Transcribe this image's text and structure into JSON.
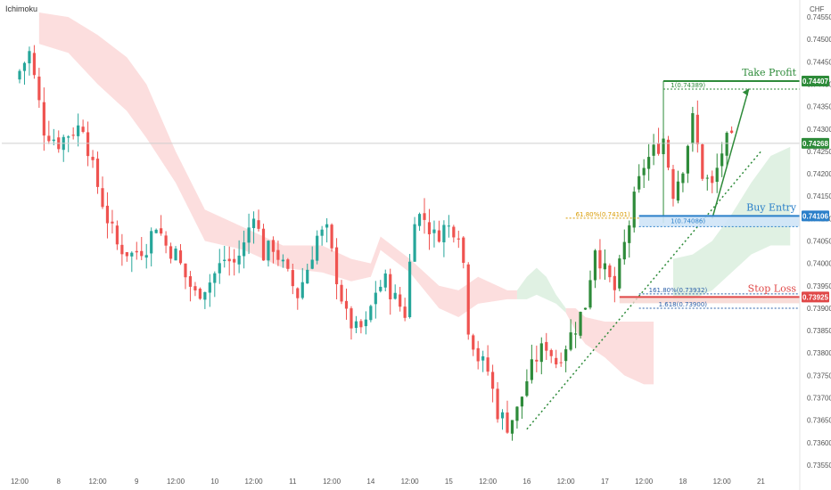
{
  "header": {
    "indicator_label": "Ichimoku",
    "currency_label": "CHF"
  },
  "chart_data": {
    "type": "candlestick",
    "ylim": [
      0.7353,
      0.7458
    ],
    "y_ticks": [
      "0.74550",
      "0.74500",
      "0.74450",
      "0.74400",
      "0.74350",
      "0.74300",
      "0.74250",
      "0.74200",
      "0.74150",
      "0.74100",
      "0.74050",
      "0.74000",
      "0.73950",
      "0.73900",
      "0.73850",
      "0.73800",
      "0.73750",
      "0.73700",
      "0.73650",
      "0.73600",
      "0.73550"
    ],
    "x_labels": [
      "12:00",
      "8",
      "12:00",
      "9",
      "12:00",
      "10",
      "12:00",
      "11",
      "12:00",
      "14",
      "12:00",
      "15",
      "12:00",
      "16",
      "12:00",
      "17",
      "12:00",
      "18",
      "12:00",
      "21"
    ],
    "x_label_positions": [
      0.0,
      8.0,
      16.0,
      24.0,
      32.0,
      40.0,
      48.0,
      56.0,
      64.0,
      72.0,
      80.0,
      88.0,
      96.0,
      104.0,
      112.0,
      120.0,
      128.0,
      136.0,
      144.0,
      152.0
    ],
    "candle_anchors": [
      [
        0,
        0.7443
      ],
      [
        2,
        0.7447
      ],
      [
        5,
        0.743
      ],
      [
        8,
        0.7427
      ],
      [
        10,
        0.7429
      ],
      [
        13,
        0.7431
      ],
      [
        15,
        0.7421
      ],
      [
        18,
        0.741
      ],
      [
        20,
        0.7404
      ],
      [
        23,
        0.7402
      ],
      [
        26,
        0.7404
      ],
      [
        28,
        0.7409
      ],
      [
        30,
        0.7404
      ],
      [
        32,
        0.7402
      ],
      [
        34,
        0.7397
      ],
      [
        36,
        0.7393
      ],
      [
        39,
        0.7396
      ],
      [
        42,
        0.7401
      ],
      [
        44,
        0.74
      ],
      [
        46,
        0.7404
      ],
      [
        48,
        0.7412
      ],
      [
        50,
        0.7402
      ],
      [
        52,
        0.7404
      ],
      [
        55,
        0.7397
      ],
      [
        57,
        0.7393
      ],
      [
        59,
        0.7399
      ],
      [
        61,
        0.7406
      ],
      [
        63,
        0.7407
      ],
      [
        65,
        0.7397
      ],
      [
        67,
        0.7388
      ],
      [
        69,
        0.7385
      ],
      [
        71,
        0.7386
      ],
      [
        73,
        0.7394
      ],
      [
        75,
        0.7396
      ],
      [
        77,
        0.7392
      ],
      [
        79,
        0.7389
      ],
      [
        81,
        0.7411
      ],
      [
        83,
        0.741
      ],
      [
        85,
        0.7406
      ],
      [
        87,
        0.7408
      ],
      [
        89,
        0.7408
      ],
      [
        90.5,
        0.7407
      ],
      [
        92,
        0.7386
      ],
      [
        94,
        0.7379
      ],
      [
        96,
        0.7376
      ],
      [
        98,
        0.7367
      ],
      [
        100,
        0.7364
      ],
      [
        102,
        0.7367
      ],
      [
        104,
        0.7374
      ],
      [
        106,
        0.7379
      ],
      [
        108,
        0.7382
      ],
      [
        110,
        0.7378
      ],
      [
        112,
        0.7382
      ],
      [
        114,
        0.7386
      ],
      [
        116,
        0.7391
      ],
      [
        118,
        0.7404
      ],
      [
        120,
        0.7398
      ],
      [
        122,
        0.7394
      ],
      [
        124,
        0.7404
      ],
      [
        126,
        0.7414
      ],
      [
        128,
        0.7422
      ],
      [
        130,
        0.7425
      ],
      [
        132,
        0.7428
      ],
      [
        134,
        0.7416
      ],
      [
        136,
        0.7422
      ],
      [
        138,
        0.7432
      ],
      [
        140,
        0.742
      ],
      [
        142,
        0.7417
      ],
      [
        144,
        0.7425
      ],
      [
        145,
        0.7427
      ]
    ],
    "cloud_segments": [
      {
        "x": [
          4,
          10,
          16,
          22,
          26,
          32,
          38,
          46,
          54,
          62,
          68,
          72,
          74,
          80,
          86,
          90,
          94,
          100,
          102
        ],
        "a": [
          0.7456,
          0.7455,
          0.7451,
          0.7446,
          0.744,
          0.7425,
          0.7412,
          0.7408,
          0.7404,
          0.7404,
          0.7401,
          0.74,
          0.7406,
          0.7401,
          0.7395,
          0.7394,
          0.7397,
          0.7394,
          0.7394
        ],
        "b": [
          0.7449,
          0.7447,
          0.744,
          0.7434,
          0.7428,
          0.7418,
          0.7405,
          0.7403,
          0.7399,
          0.7398,
          0.7396,
          0.7397,
          0.7403,
          0.7398,
          0.739,
          0.7388,
          0.7391,
          0.7392,
          0.7392
        ],
        "bull": false
      },
      {
        "x": [
          102,
          104,
          106,
          108,
          110,
          112
        ],
        "a": [
          0.7394,
          0.7397,
          0.7399,
          0.7397,
          0.7393,
          0.739
        ],
        "b": [
          0.7392,
          0.7392,
          0.7393,
          0.7392,
          0.7391,
          0.7389
        ],
        "bull": true
      },
      {
        "x": [
          112,
          114,
          116,
          120,
          124,
          128,
          130
        ],
        "a": [
          0.739,
          0.739,
          0.7388,
          0.7387,
          0.7387,
          0.7387,
          0.7387
        ],
        "b": [
          0.7389,
          0.7385,
          0.7382,
          0.7379,
          0.7375,
          0.7373,
          0.7373
        ],
        "bull": false
      },
      {
        "x": [
          134,
          138,
          142,
          146,
          150,
          154,
          158
        ],
        "a": [
          0.7401,
          0.7402,
          0.7405,
          0.7411,
          0.7418,
          0.7424,
          0.7426
        ],
        "b": [
          0.7392,
          0.7392,
          0.7394,
          0.7398,
          0.7402,
          0.7404,
          0.7404
        ],
        "bull": true
      }
    ],
    "last_price": "0.74268",
    "last_price_value": 0.74268,
    "levels": {
      "take_profit": {
        "label": "Take Profit",
        "price": "0.74407",
        "value": 0.74407,
        "color": "#2e8b3a"
      },
      "buy_entry": {
        "label": "Buy Entry",
        "price": "0.74106",
        "value": 0.74106,
        "color": "#2a7fc9"
      },
      "stop_loss": {
        "label": "Stop Loss",
        "price": "0.73925",
        "value": 0.73925,
        "color": "#e04848"
      }
    },
    "annotations": [
      {
        "text": "1(0.74389)",
        "value": 0.74389,
        "color": "#2e8b3a"
      },
      {
        "text": "61.80%(0.74101)",
        "value": 0.74101,
        "color": "#d89a00"
      },
      {
        "text": "1(0.74086)",
        "value": 0.74086,
        "color": "#2a7fc9"
      },
      {
        "text": "161.80%(0.73932)",
        "value": 0.73932,
        "color": "#2a5fa8"
      },
      {
        "text": "1.618(0.73900)",
        "value": 0.739,
        "color": "#2a5fa8"
      }
    ],
    "colors": {
      "bull": "#26a69a",
      "bear": "#ef5350",
      "bull_alt": "#2e8b3a",
      "cloud_bear": "#fbd3d3",
      "cloud_bull": "#d6ecd9"
    }
  }
}
